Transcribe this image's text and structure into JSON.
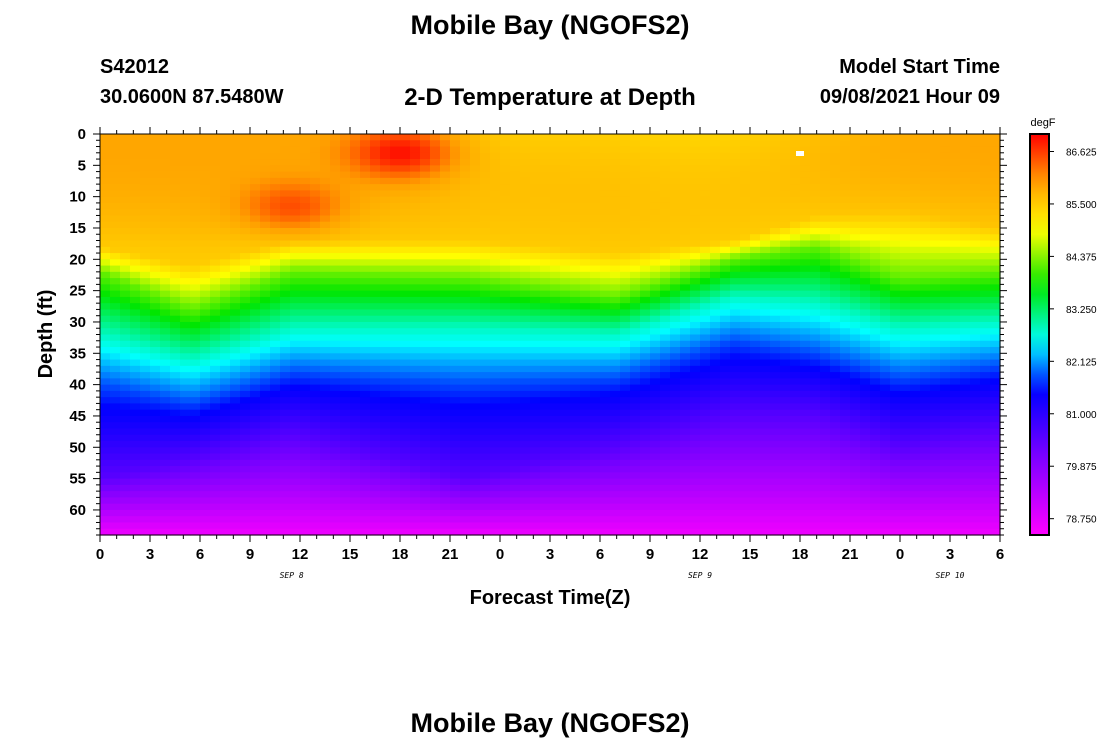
{
  "chart_data": {
    "type": "heatmap",
    "title": "Mobile Bay (NGOFS2)",
    "subtitle": "2-D Temperature at Depth",
    "station": "S42012",
    "coordinates": "30.0600N  87.5480W",
    "model_start_label": "Model Start Time",
    "model_start_value": "09/08/2021 Hour 09",
    "xlabel": "Forecast Time(Z)",
    "ylabel": "Depth (ft)",
    "x_ticks": [
      "0",
      "3",
      "6",
      "9",
      "12",
      "15",
      "18",
      "21",
      "0",
      "3",
      "6",
      "9",
      "12",
      "15",
      "18",
      "21",
      "0",
      "3",
      "6"
    ],
    "x_range_hours": [
      0,
      54
    ],
    "date_labels": [
      {
        "text": "SEP 8",
        "hour": 11.5
      },
      {
        "text": "SEP 9",
        "hour": 36
      },
      {
        "text": "SEP 10",
        "hour": 51
      }
    ],
    "y_ticks": [
      0,
      5,
      10,
      15,
      20,
      25,
      30,
      35,
      40,
      45,
      50,
      55,
      60
    ],
    "ylim": [
      0,
      64
    ],
    "y_inverted": true,
    "colorbar": {
      "unit": "degF",
      "ticks": [
        "86.625",
        "85.500",
        "84.375",
        "83.250",
        "82.125",
        "81.000",
        "79.875",
        "78.750"
      ],
      "range": [
        78.4,
        87.0
      ]
    },
    "isotherm_depths": {
      "hours": [
        0,
        5.5,
        11.5,
        22,
        31,
        38,
        43,
        48,
        54
      ],
      "t85_5": [
        18,
        21,
        17,
        17,
        19,
        17,
        13,
        12,
        15
      ],
      "t84_2": [
        22,
        28,
        22,
        23,
        26,
        20,
        18,
        23,
        22
      ],
      "t82_8": [
        32,
        36,
        31,
        31,
        32,
        26,
        27,
        31,
        30
      ],
      "t81_8": [
        40,
        43,
        38,
        40,
        39,
        33,
        35,
        39,
        37
      ],
      "t80_5": [
        55,
        52,
        48,
        55,
        50,
        45,
        45,
        50,
        47
      ]
    },
    "warm_spots": [
      {
        "hour": 18,
        "depth": 3,
        "peak": 86.9
      },
      {
        "hour": 11.5,
        "depth": 11.5,
        "peak": 86.5
      }
    ],
    "bottom_temp": 78.6
  }
}
